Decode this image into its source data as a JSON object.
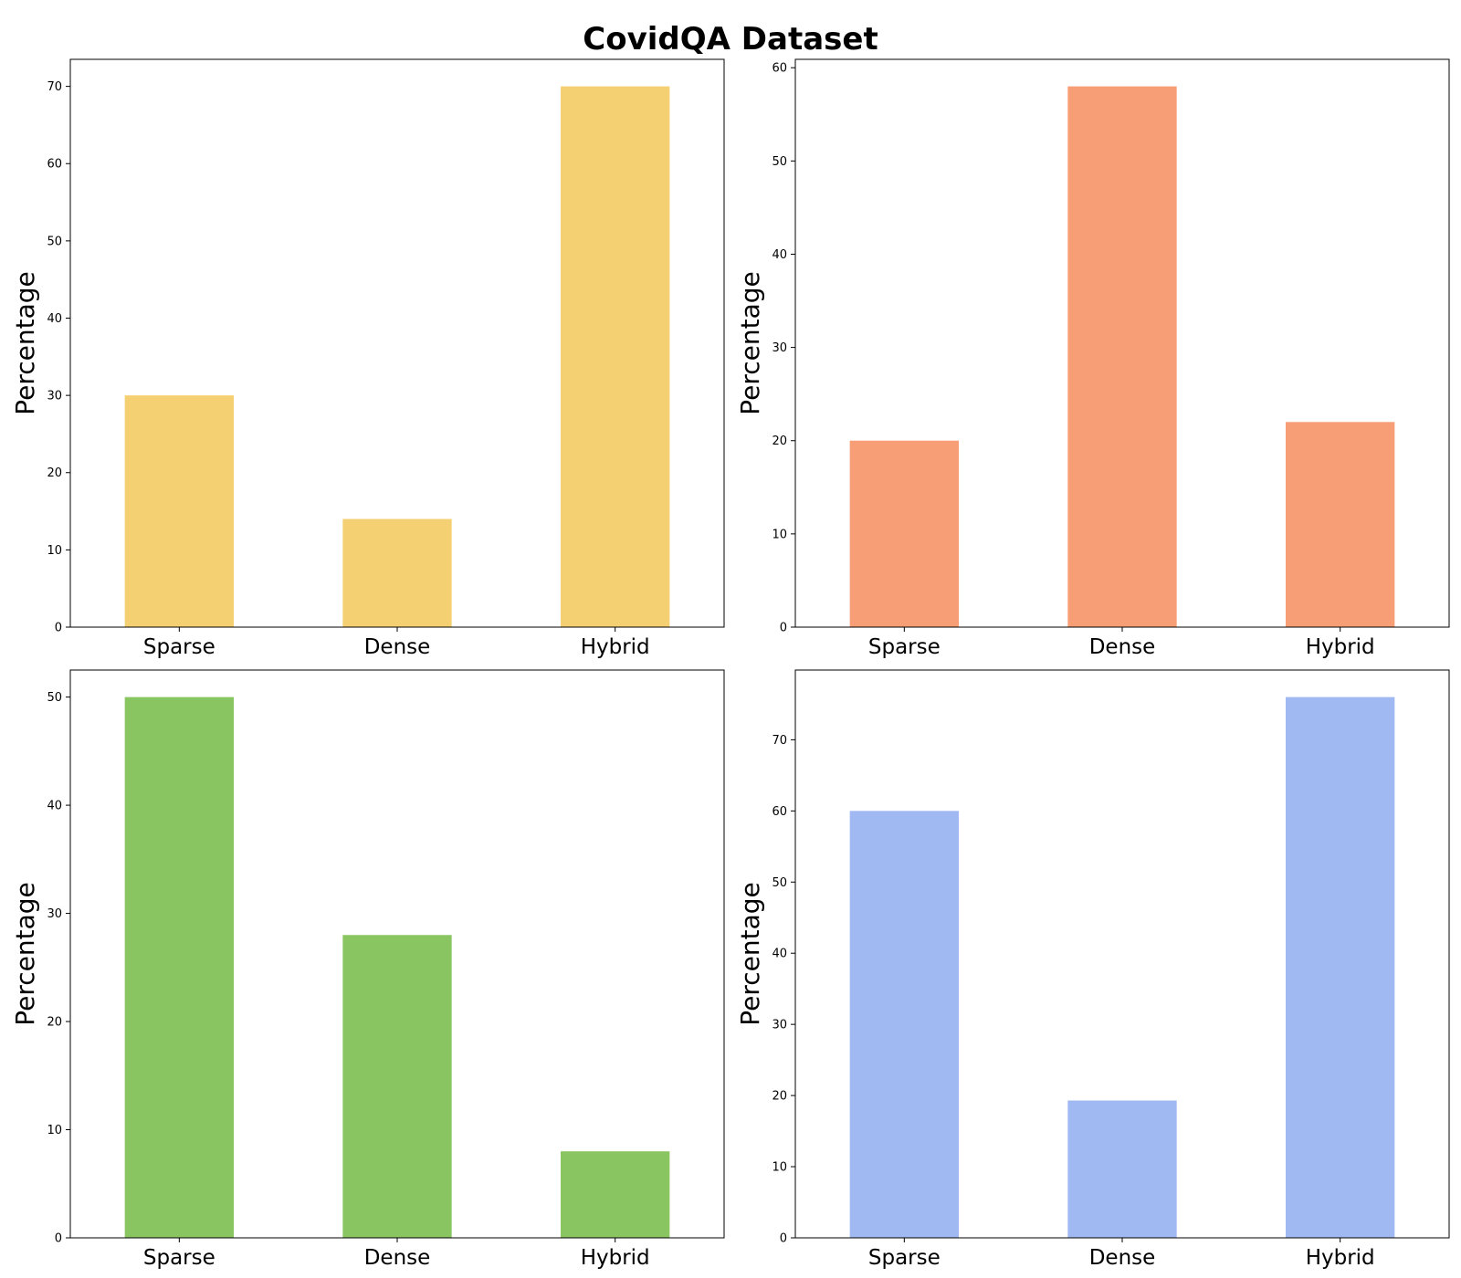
{
  "figure": {
    "title": "CovidQA Dataset"
  },
  "chart_data": [
    {
      "type": "bar",
      "categories": [
        "Sparse",
        "Dense",
        "Hybrid"
      ],
      "values": [
        30,
        14,
        70
      ],
      "color": "#f5d072",
      "title": "",
      "xlabel": "",
      "ylabel": "Percentage",
      "ylim": [
        0,
        73.5
      ],
      "yticks": [
        0,
        10,
        20,
        30,
        40,
        50,
        60,
        70
      ],
      "grid": false
    },
    {
      "type": "bar",
      "categories": [
        "Sparse",
        "Dense",
        "Hybrid"
      ],
      "values": [
        20,
        58,
        22
      ],
      "color": "#f89e76",
      "title": "",
      "xlabel": "",
      "ylabel": "Percentage",
      "ylim": [
        0,
        60.9
      ],
      "yticks": [
        0,
        10,
        20,
        30,
        40,
        50,
        60
      ],
      "grid": false
    },
    {
      "type": "bar",
      "categories": [
        "Sparse",
        "Dense",
        "Hybrid"
      ],
      "values": [
        50,
        28,
        8
      ],
      "color": "#89c561",
      "title": "",
      "xlabel": "",
      "ylabel": "Percentage",
      "ylim": [
        0,
        52.5
      ],
      "yticks": [
        0,
        10,
        20,
        30,
        40,
        50
      ],
      "grid": false
    },
    {
      "type": "bar",
      "categories": [
        "Sparse",
        "Dense",
        "Hybrid"
      ],
      "values": [
        60,
        19.3,
        76
      ],
      "color": "#a0b9f2",
      "title": "",
      "xlabel": "",
      "ylabel": "Percentage",
      "ylim": [
        0,
        79.8
      ],
      "yticks": [
        0,
        10,
        20,
        30,
        40,
        50,
        60,
        70
      ],
      "grid": false
    }
  ]
}
